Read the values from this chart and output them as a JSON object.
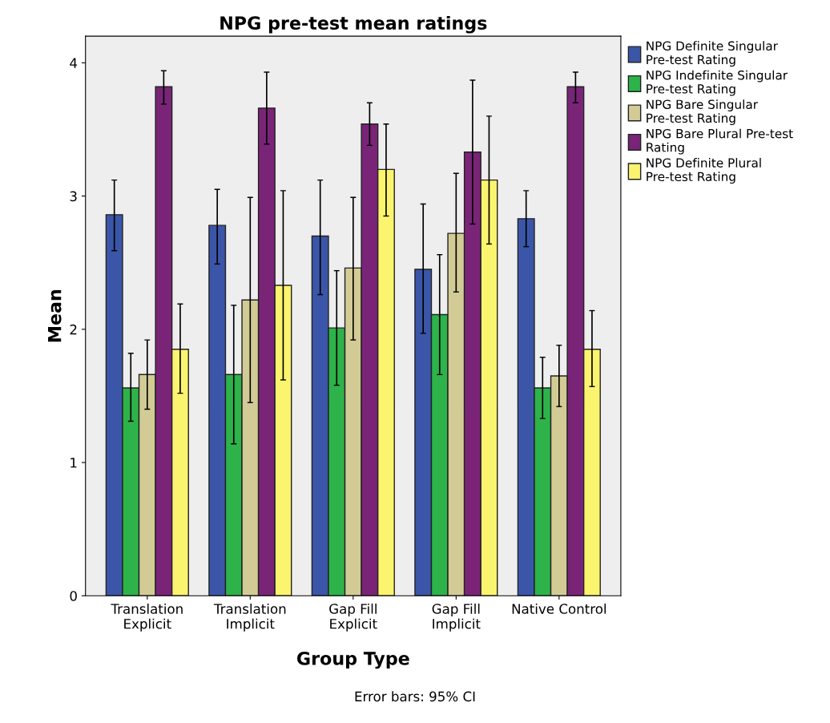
{
  "chart_data": {
    "type": "bar",
    "title": "NPG pre-test mean ratings",
    "xlabel": "Group Type",
    "ylabel": "Mean",
    "categories": [
      "Translation\nExplicit",
      "Translation\nImplicit",
      "Gap Fill\nExplicit",
      "Gap Fill\nImplicit",
      "Native Control"
    ],
    "series": [
      {
        "name": "NPG Definite Singular Pre-test Rating",
        "color": "#3b56a8",
        "values": [
          2.86,
          2.78,
          2.7,
          2.45,
          2.83
        ],
        "errors": [
          [
            2.59,
            3.12
          ],
          [
            2.49,
            3.05
          ],
          [
            2.26,
            3.12
          ],
          [
            1.97,
            2.94
          ],
          [
            2.62,
            3.04
          ]
        ]
      },
      {
        "name": "NPG Indefinite Singular Pre-test Rating",
        "color": "#2db34a",
        "values": [
          1.56,
          1.66,
          2.01,
          2.11,
          1.56
        ],
        "errors": [
          [
            1.31,
            1.82
          ],
          [
            1.14,
            2.18
          ],
          [
            1.58,
            2.44
          ],
          [
            1.66,
            2.56
          ],
          [
            1.33,
            1.79
          ]
        ]
      },
      {
        "name": "NPG Bare Singular Pre-test Rating",
        "color": "#d3cb95",
        "values": [
          1.66,
          2.22,
          2.46,
          2.72,
          1.65
        ],
        "errors": [
          [
            1.4,
            1.92
          ],
          [
            1.45,
            2.99
          ],
          [
            1.92,
            2.99
          ],
          [
            2.28,
            3.17
          ],
          [
            1.42,
            1.88
          ]
        ]
      },
      {
        "name": "NPG Bare Plural Pre-test Rating",
        "color": "#7a2478",
        "values": [
          3.82,
          3.66,
          3.54,
          3.33,
          3.82
        ],
        "errors": [
          [
            3.69,
            3.94
          ],
          [
            3.39,
            3.93
          ],
          [
            3.38,
            3.7
          ],
          [
            2.79,
            3.87
          ],
          [
            3.7,
            3.93
          ]
        ]
      },
      {
        "name": "NPG Definite Plural Pre-test Rating",
        "color": "#fbf46e",
        "values": [
          1.85,
          2.33,
          3.2,
          3.12,
          1.85
        ],
        "errors": [
          [
            1.52,
            2.19
          ],
          [
            1.62,
            3.04
          ],
          [
            2.85,
            3.54
          ],
          [
            2.64,
            3.6
          ],
          [
            1.57,
            2.14
          ]
        ]
      }
    ],
    "ylim": [
      0,
      4.2
    ],
    "yticks": [
      0,
      1,
      2,
      3,
      4
    ],
    "grid": false,
    "legend": "right",
    "annotations": [
      "Error bars: 95% CI"
    ]
  }
}
